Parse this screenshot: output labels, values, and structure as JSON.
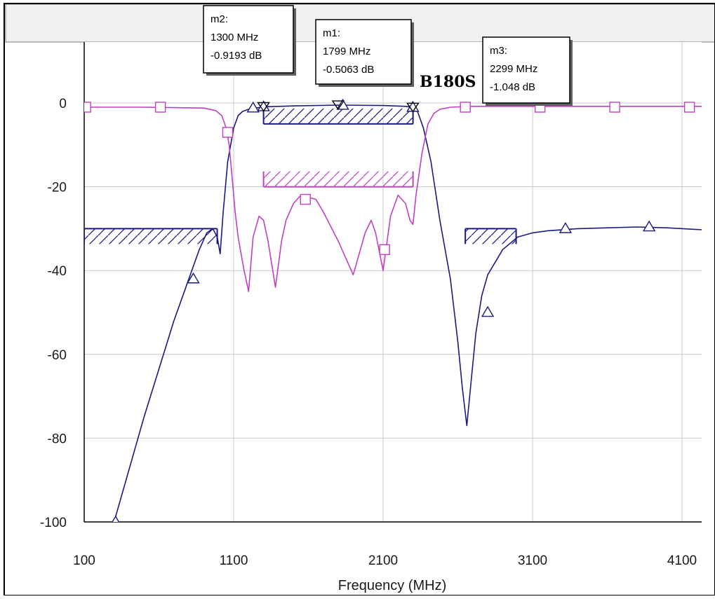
{
  "chart_data": {
    "type": "line",
    "title": "",
    "xlabel": "Frequency (MHz)",
    "ylabel": "",
    "xlim": [
      100,
      4400
    ],
    "ylim": [
      -100,
      5
    ],
    "xticks": [
      "100",
      "1100",
      "2100",
      "3100",
      "4100"
    ],
    "yticks": [
      "0",
      "-20",
      "-40",
      "-60",
      "-80",
      "-100"
    ],
    "grid": true,
    "partial_label": "B180S",
    "series": [
      {
        "color": "#1a1a80",
        "marker": "triangle",
        "x": [
          300,
          500,
          700,
          800,
          870,
          920,
          960,
          990,
          1010,
          1030,
          1060,
          1100,
          1130,
          1160,
          1200,
          1250,
          1300,
          1500,
          1799,
          2100,
          2250,
          2299,
          2330,
          2370,
          2420,
          2480,
          2550,
          2600,
          2630,
          2660,
          2690,
          2720,
          2760,
          2800,
          2900,
          3000,
          3100,
          3200,
          3400,
          3600,
          3800,
          4000,
          4200,
          4400
        ],
        "y": [
          -100,
          -75,
          -52,
          -42,
          -35,
          -31,
          -30,
          -32,
          -36,
          -26,
          -14,
          -6,
          -3,
          -2,
          -1.5,
          -1.2,
          -0.92,
          -0.7,
          -0.5,
          -0.6,
          -0.8,
          -1.05,
          -2,
          -6,
          -14,
          -28,
          -42,
          -57,
          -68,
          -77,
          -66,
          -55,
          -46,
          -41,
          -35,
          -32,
          -31,
          -30.5,
          -30,
          -29.8,
          -29.6,
          -29.8,
          -30.2,
          -30.5
        ],
        "markers_x": [
          310,
          830,
          1230,
          1300,
          1830,
          2299,
          2800,
          3320,
          3880,
          4400
        ],
        "markers_y": [
          -100,
          -42,
          -1.2,
          -0.92,
          -0.55,
          -1.05,
          -50,
          -30,
          -29.6,
          -30.5
        ]
      },
      {
        "color": "#c040c0",
        "marker": "square",
        "x": [
          100,
          500,
          900,
          980,
          1020,
          1050,
          1070,
          1090,
          1110,
          1130,
          1150,
          1170,
          1200,
          1230,
          1270,
          1300,
          1330,
          1380,
          1420,
          1450,
          1500,
          1550,
          1650,
          1700,
          1800,
          1900,
          1980,
          2020,
          2050,
          2100,
          2150,
          2200,
          2250,
          2280,
          2300,
          2320,
          2360,
          2400,
          2440,
          2480,
          2550,
          2700,
          3000,
          3500,
          4000,
          4400
        ],
        "y": [
          -1,
          -1,
          -1.2,
          -1.8,
          -3,
          -6,
          -10,
          -18,
          -26,
          -32,
          -36,
          -40,
          -45,
          -32,
          -27,
          -28,
          -33,
          -44,
          -33,
          -28,
          -24,
          -22,
          -23,
          -26,
          -33,
          -41,
          -31,
          -28,
          -31,
          -40,
          -27,
          -22,
          -24,
          -28,
          -29,
          -22,
          -12,
          -5,
          -2.5,
          -1.5,
          -1,
          -0.8,
          -0.8,
          -0.8,
          -0.8,
          -0.8
        ],
        "markers_x": [
          110,
          610,
          1060,
          1580,
          2110,
          2650,
          3150,
          3650,
          4150
        ],
        "markers_y": [
          -1,
          -1,
          -7,
          -23,
          -35,
          -1,
          -1,
          -1,
          -1
        ]
      }
    ],
    "masks": [
      {
        "x": [
          100,
          990
        ],
        "y": -30,
        "hatch": "below",
        "color": "#1a1a80"
      },
      {
        "x": [
          2650,
          2990
        ],
        "y": -30,
        "hatch": "below",
        "color": "#1a1a80"
      },
      {
        "x": [
          1300,
          2300
        ],
        "y": -5,
        "hatch": "above",
        "color": "#1a1a80"
      },
      {
        "x": [
          1300,
          2300
        ],
        "y": -20,
        "hatch": "above",
        "color": "#c040c0"
      }
    ],
    "markers": [
      {
        "name": "m2:",
        "freq": "1300 MHz",
        "value": "-0.9193 dB",
        "x": 1300,
        "y": -0.92
      },
      {
        "name": "m1:",
        "freq": "1799 MHz",
        "value": "-0.5063 dB",
        "x": 1799,
        "y": -0.51
      },
      {
        "name": "m3:",
        "freq": "2299 MHz",
        "value": "-1.048 dB",
        "x": 2299,
        "y": -1.05
      }
    ]
  },
  "colors": {
    "header": "#f0f0f0",
    "plot_bg": "#ffffff",
    "grid": "#c8c8c8",
    "blue": "#1a1a80",
    "magenta": "#c040c0"
  }
}
